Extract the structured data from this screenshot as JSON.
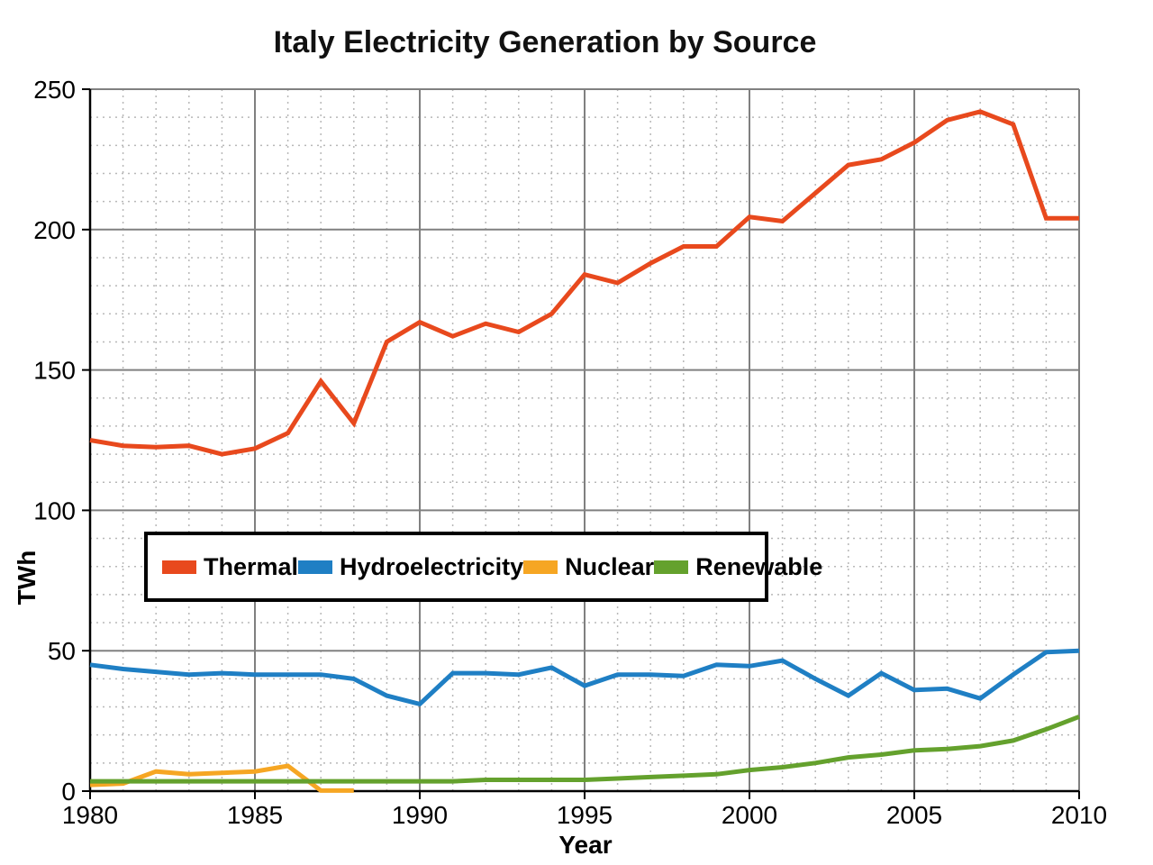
{
  "chart_data": {
    "type": "line",
    "title": "Italy Electricity Generation by Source",
    "xlabel": "Year",
    "ylabel": "TWh",
    "xlim": [
      1980,
      2010
    ],
    "ylim": [
      0,
      250
    ],
    "x_major_step": 5,
    "x_minor_step": 1,
    "y_major_step": 50,
    "y_minor_step": 10,
    "grid": "major solid gray lines, minor dashed light-gray lines",
    "legend_position": "inside plot, horizontal box left-center",
    "x": [
      1980,
      1981,
      1982,
      1983,
      1984,
      1985,
      1986,
      1987,
      1988,
      1989,
      1990,
      1991,
      1992,
      1993,
      1994,
      1995,
      1996,
      1997,
      1998,
      1999,
      2000,
      2001,
      2002,
      2003,
      2004,
      2005,
      2006,
      2007,
      2008,
      2009,
      2010
    ],
    "series": [
      {
        "name": "Thermal",
        "color": "#E8491D",
        "values": [
          125,
          123,
          122.5,
          123,
          120,
          122,
          127.5,
          146,
          131,
          160,
          167,
          162,
          166.5,
          163.5,
          170,
          184,
          181,
          188,
          194,
          194,
          204.5,
          203,
          213,
          223,
          225,
          231,
          239,
          242,
          237.5,
          204,
          204
        ]
      },
      {
        "name": "Hydroelectricity",
        "color": "#1F7FC4",
        "values": [
          45,
          43.5,
          42.5,
          41.5,
          42,
          41.5,
          41.5,
          41.5,
          40,
          34,
          31,
          42,
          42,
          41.5,
          44,
          37.5,
          41.5,
          41.5,
          41,
          45,
          44.5,
          46.5,
          40,
          34,
          42,
          36,
          36.5,
          33,
          41.5,
          49.5,
          50
        ]
      },
      {
        "name": "Nuclear",
        "color": "#F6A623",
        "values": [
          2.2,
          2.7,
          7,
          6,
          6.5,
          7,
          9,
          0.2,
          0.2,
          null,
          null,
          null,
          null,
          null,
          null,
          null,
          null,
          null,
          null,
          null,
          null,
          null,
          null,
          null,
          null,
          null,
          null,
          null,
          null,
          null,
          null
        ]
      },
      {
        "name": "Renewable",
        "color": "#64A12D",
        "values": [
          3.5,
          3.5,
          3.5,
          3.5,
          3.5,
          3.5,
          3.5,
          3.5,
          3.5,
          3.5,
          3.5,
          3.5,
          4,
          4,
          4,
          4,
          4.5,
          5,
          5.5,
          6,
          7.5,
          8.5,
          10,
          12,
          13,
          14.5,
          15,
          16,
          18,
          22,
          26.5
        ]
      }
    ]
  }
}
